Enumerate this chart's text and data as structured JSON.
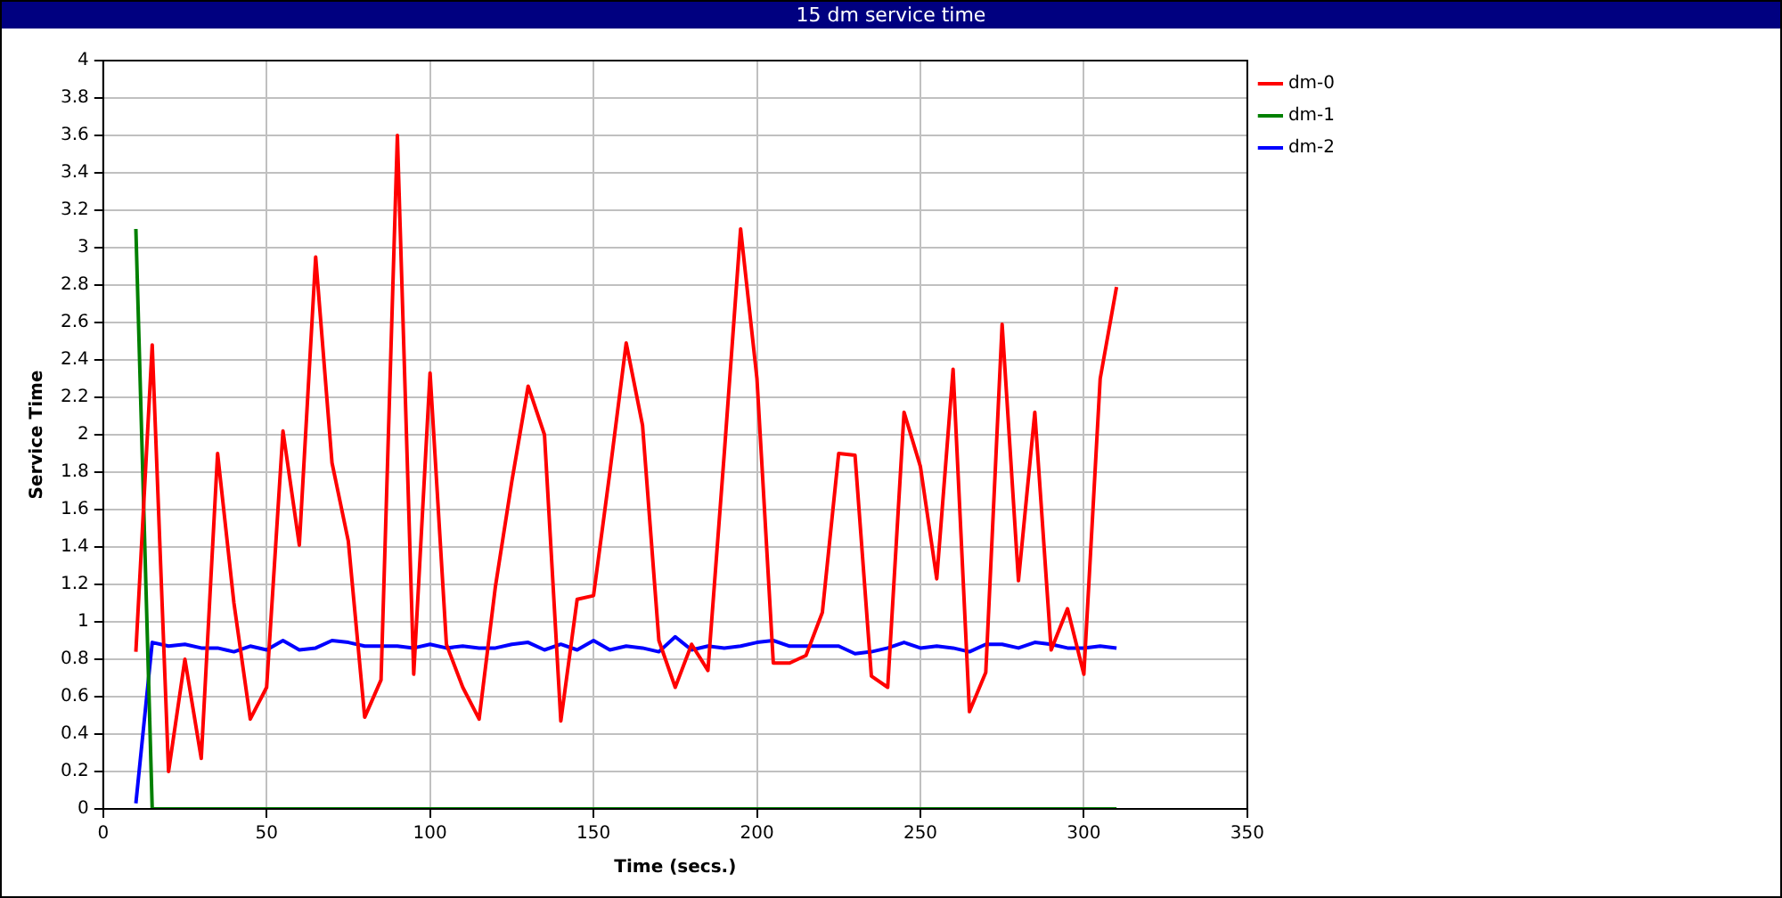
{
  "chart_data": {
    "type": "line",
    "title": "15 dm service time",
    "xlabel": "Time (secs.)",
    "ylabel": "Service Time",
    "x": [
      10,
      15,
      20,
      25,
      30,
      35,
      40,
      45,
      50,
      55,
      60,
      65,
      70,
      75,
      80,
      85,
      90,
      95,
      100,
      105,
      110,
      115,
      120,
      125,
      130,
      135,
      140,
      145,
      150,
      155,
      160,
      165,
      170,
      175,
      180,
      185,
      190,
      195,
      200,
      205,
      210,
      215,
      220,
      225,
      230,
      235,
      240,
      245,
      250,
      255,
      260,
      265,
      270,
      275,
      280,
      285,
      290,
      295,
      300,
      305,
      310
    ],
    "series": [
      {
        "name": "dm-0",
        "color": "#ff0000",
        "values": [
          0.84,
          2.48,
          0.2,
          0.8,
          0.27,
          1.9,
          1.1,
          0.48,
          0.65,
          2.02,
          1.41,
          2.95,
          1.85,
          1.43,
          0.49,
          0.69,
          3.6,
          0.72,
          2.33,
          0.88,
          0.65,
          0.48,
          1.19,
          1.75,
          2.26,
          2.0,
          0.47,
          1.12,
          1.14,
          1.8,
          2.49,
          2.05,
          0.9,
          0.65,
          0.88,
          0.74,
          1.9,
          3.1,
          2.3,
          0.78,
          0.78,
          0.82,
          1.05,
          1.9,
          1.89,
          0.71,
          0.65,
          2.12,
          1.83,
          1.23,
          2.35,
          0.52,
          0.73,
          2.59,
          1.22,
          2.12,
          0.85,
          1.07,
          0.72,
          2.3,
          2.79
        ]
      },
      {
        "name": "dm-1",
        "color": "#008000",
        "values": [
          3.1,
          0,
          0,
          0,
          0,
          0,
          0,
          0,
          0,
          0,
          0,
          0,
          0,
          0,
          0,
          0,
          0,
          0,
          0,
          0,
          0,
          0,
          0,
          0,
          0,
          0,
          0,
          0,
          0,
          0,
          0,
          0,
          0,
          0,
          0,
          0,
          0,
          0,
          0,
          0,
          0,
          0,
          0,
          0,
          0,
          0,
          0,
          0,
          0,
          0,
          0,
          0,
          0,
          0,
          0,
          0,
          0,
          0,
          0,
          0,
          0
        ]
      },
      {
        "name": "dm-2",
        "color": "#0000ff",
        "values": [
          0.03,
          0.89,
          0.87,
          0.88,
          0.86,
          0.86,
          0.84,
          0.87,
          0.85,
          0.9,
          0.85,
          0.86,
          0.9,
          0.89,
          0.87,
          0.87,
          0.87,
          0.86,
          0.88,
          0.86,
          0.87,
          0.86,
          0.86,
          0.88,
          0.89,
          0.85,
          0.88,
          0.85,
          0.9,
          0.85,
          0.87,
          0.86,
          0.84,
          0.92,
          0.85,
          0.87,
          0.86,
          0.87,
          0.89,
          0.9,
          0.87,
          0.87,
          0.87,
          0.87,
          0.83,
          0.84,
          0.86,
          0.89,
          0.86,
          0.87,
          0.86,
          0.84,
          0.88,
          0.88,
          0.86,
          0.89,
          0.88,
          0.86,
          0.86,
          0.87,
          0.86
        ]
      }
    ],
    "xlim": [
      0,
      350
    ],
    "xticks": [
      0,
      50,
      100,
      150,
      200,
      250,
      300,
      350
    ],
    "ylim": [
      0,
      4
    ],
    "yticks": [
      0,
      0.2,
      0.4,
      0.6,
      0.8,
      1,
      1.2,
      1.4,
      1.6,
      1.8,
      2,
      2.2,
      2.4,
      2.6,
      2.8,
      3,
      3.2,
      3.4,
      3.6,
      3.8,
      4
    ],
    "grid": true,
    "legend": "top right",
    "marker": "none",
    "line_style": "solid"
  }
}
